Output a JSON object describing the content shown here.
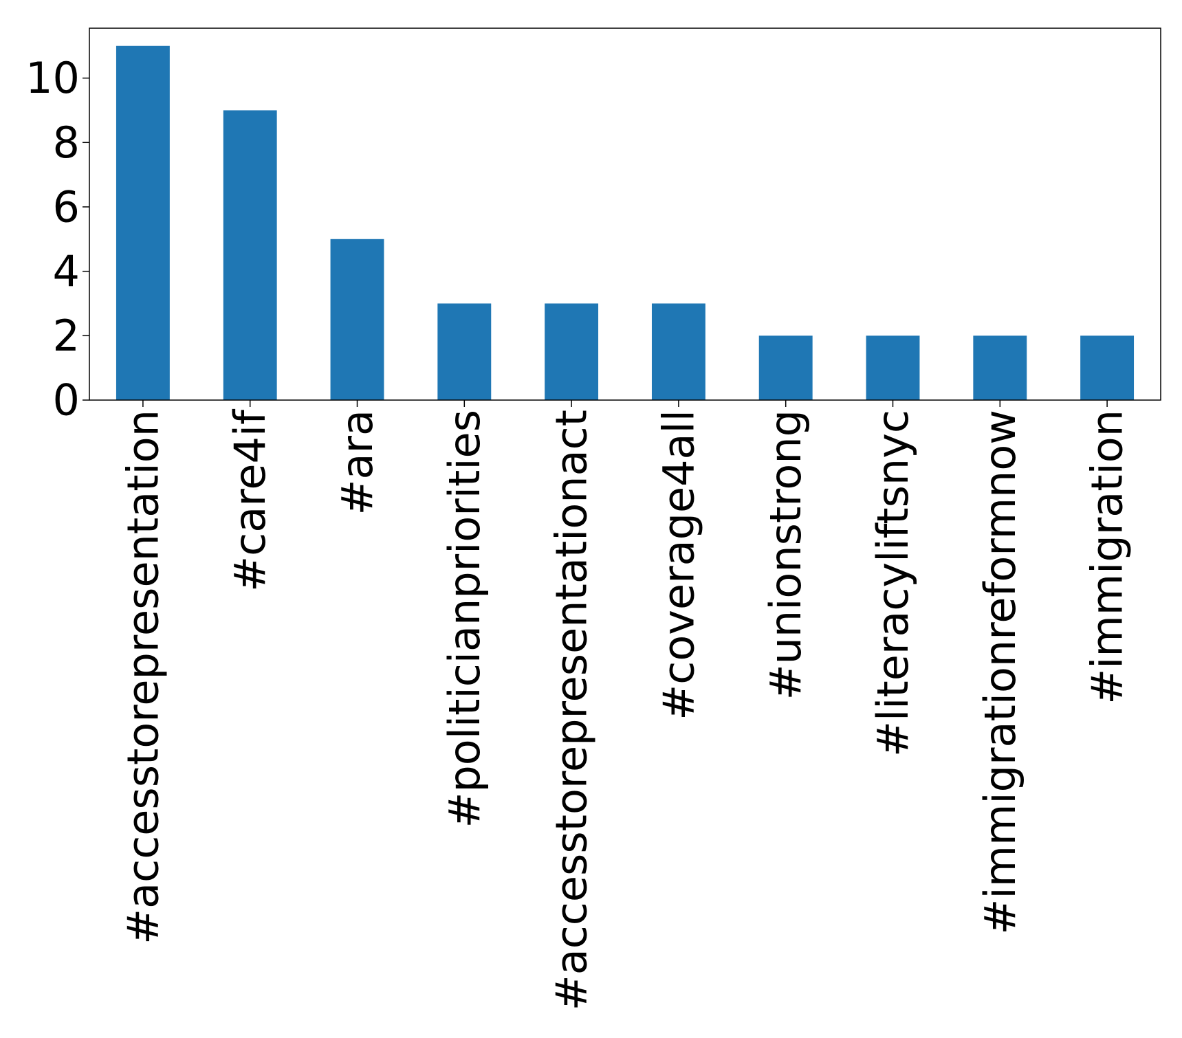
{
  "chart_data": {
    "type": "bar",
    "categories": [
      "#accesstorepresentation",
      "#care4if",
      "#ara",
      "#politicianpriorities",
      "#accesstorepresentationact",
      "#coverage4all",
      "#unionstrong",
      "#literacyliftsnyc",
      "#immigrationreformnow",
      "#immigration"
    ],
    "values": [
      11,
      9,
      5,
      3,
      3,
      3,
      2,
      2,
      2,
      2
    ],
    "title": "",
    "xlabel": "",
    "ylabel": "",
    "ylim": [
      0,
      11.55
    ],
    "yticks": [
      0,
      2,
      4,
      6,
      8,
      10
    ],
    "bar_color": "#1f77b4",
    "grid": false,
    "legend": "none"
  }
}
